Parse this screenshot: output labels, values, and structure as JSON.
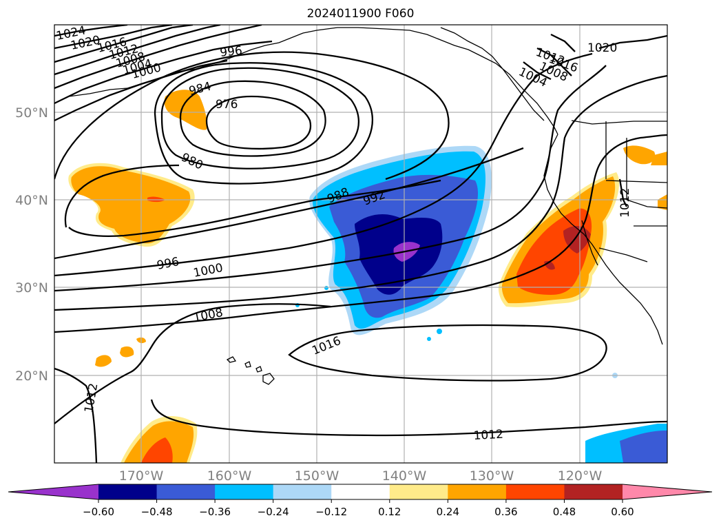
{
  "title": "2024011900 F060",
  "lon_labels": [
    "170°W",
    "160°W",
    "150°W",
    "140°W",
    "130°W",
    "120°W"
  ],
  "lat_labels": [
    "50°N",
    "40°N",
    "30°N",
    "20°N"
  ],
  "isobar_labels": [
    "1024",
    "1020",
    "1016",
    "1012",
    "1008",
    "1004",
    "1000",
    "996",
    "984",
    "976",
    "980",
    "988",
    "992",
    "996",
    "1000",
    "1008",
    "1016",
    "1012",
    "1012",
    "1012",
    "1020",
    "1016",
    "1008",
    "1004",
    "1012"
  ],
  "colorbar": {
    "ticks": [
      "−0.60",
      "−0.48",
      "−0.36",
      "−0.24",
      "−0.12",
      "0.12",
      "0.24",
      "0.36",
      "0.48",
      "0.60"
    ],
    "colors": [
      "#9932CC",
      "#00008B",
      "#3A5BD6",
      "#00BFFF",
      "#ADD8F7",
      "#FFFFFF",
      "#FFEB8A",
      "#FFA500",
      "#FF4500",
      "#B22222",
      "#FF88AA"
    ]
  }
}
